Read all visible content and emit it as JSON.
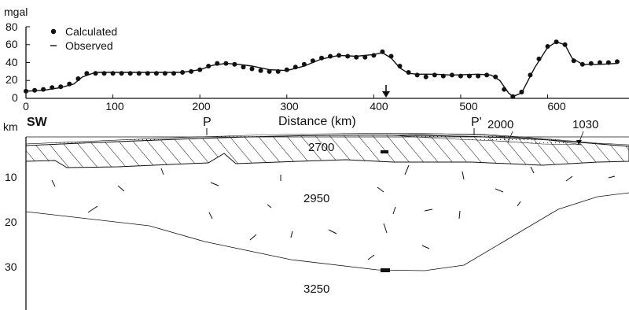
{
  "chart_data": {
    "type": "scatter",
    "ylabel": "mgal",
    "xlabel": "Distance (km)",
    "xlim": [
      0,
      680
    ],
    "ylim": [
      0,
      80
    ],
    "x_ticks": [
      0,
      100,
      200,
      300,
      400,
      500,
      600
    ],
    "y_ticks": [
      0,
      20,
      40,
      60,
      80
    ],
    "legend": [
      "Calculated",
      "Observed"
    ],
    "legend_placement": "top-left",
    "grid": false,
    "series": [
      {
        "name": "Calculated",
        "style": "dots",
        "x": [
          0,
          10,
          20,
          30,
          40,
          50,
          60,
          70,
          80,
          90,
          100,
          110,
          120,
          130,
          140,
          150,
          160,
          170,
          180,
          190,
          200,
          210,
          220,
          230,
          240,
          250,
          260,
          270,
          280,
          290,
          300,
          310,
          320,
          330,
          340,
          350,
          360,
          370,
          380,
          390,
          400,
          410,
          420,
          430,
          440,
          450,
          460,
          470,
          480,
          490,
          500,
          510,
          520,
          530,
          540,
          550,
          560,
          570,
          580,
          590,
          600,
          610,
          620,
          630,
          640,
          650,
          660,
          670,
          680
        ],
        "y": [
          8,
          9,
          10,
          12,
          13,
          16,
          22,
          28,
          28,
          28,
          28,
          28,
          28,
          28,
          28,
          28,
          28,
          28,
          29,
          30,
          32,
          36,
          39,
          39,
          38,
          35,
          33,
          31,
          30,
          30,
          32,
          35,
          38,
          42,
          45,
          47,
          48,
          47,
          46,
          46,
          48,
          52,
          47,
          36,
          29,
          26,
          24,
          26,
          25,
          26,
          25,
          25,
          25,
          26,
          24,
          10,
          2,
          7,
          26,
          44,
          58,
          63,
          60,
          42,
          38,
          39,
          40,
          40,
          41
        ]
      },
      {
        "name": "Observed",
        "style": "line",
        "x": [
          0,
          20,
          40,
          55,
          65,
          80,
          100,
          140,
          180,
          200,
          215,
          230,
          245,
          260,
          280,
          300,
          320,
          340,
          360,
          380,
          400,
          410,
          420,
          430,
          440,
          450,
          470,
          490,
          520,
          535,
          545,
          555,
          560,
          570,
          585,
          600,
          610,
          620,
          628,
          640,
          660,
          680
        ],
        "y": [
          8,
          9,
          12,
          16,
          24,
          29,
          29,
          29,
          29,
          32,
          37,
          39,
          38,
          36,
          32,
          31,
          36,
          44,
          48,
          47,
          49,
          51,
          45,
          34,
          28,
          27,
          27,
          26,
          27,
          26,
          20,
          6,
          2,
          6,
          34,
          57,
          63,
          60,
          45,
          38,
          38,
          39
        ]
      }
    ],
    "annotations": [
      "↓"
    ]
  },
  "section": {
    "km_label": "km",
    "depth_ticks": [
      "10",
      "20",
      "30"
    ],
    "left_label": "SW",
    "profile_marks": [
      "P",
      "P'"
    ],
    "densities": {
      "upper": "2700",
      "middle": "2950",
      "lower": "3250",
      "sediment_a": "2000",
      "sediment_b": "1030"
    }
  }
}
